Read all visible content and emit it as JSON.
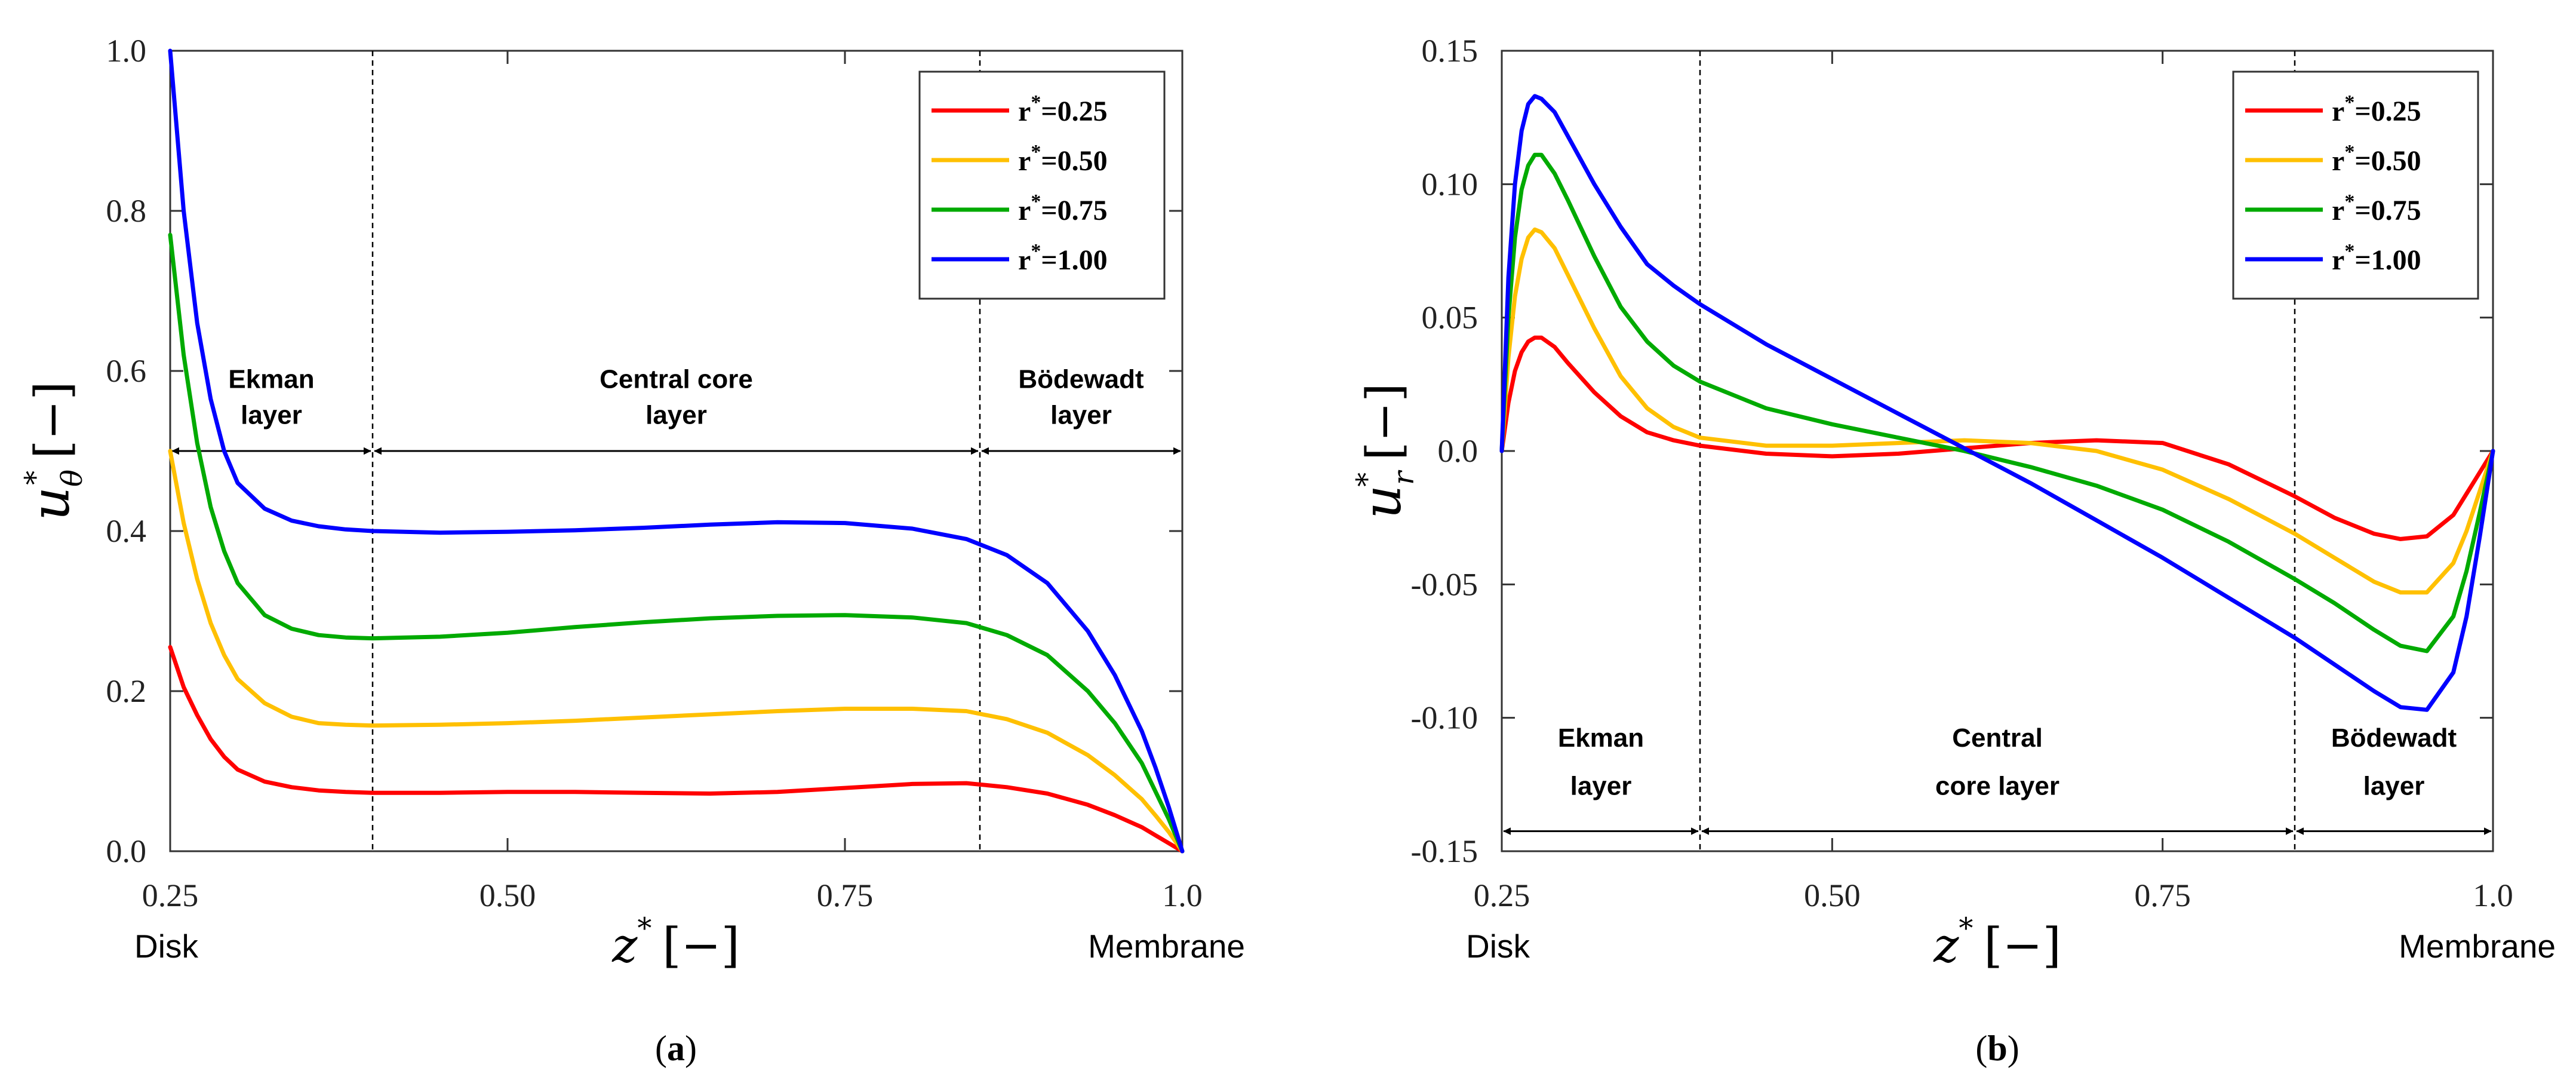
{
  "chart_data": [
    {
      "type": "line",
      "id": "a",
      "caption_letter": "a",
      "x_label": "z",
      "x_label_sup": "*",
      "y_label": "u",
      "y_label_sub": "θ",
      "y_label_sup": "*",
      "unit_bracket": "[−]",
      "xlim": [
        0.25,
        1.0
      ],
      "ylim": [
        0.0,
        1.0
      ],
      "x_ticks": [
        "0.25",
        "0.50",
        "0.75",
        "1.0"
      ],
      "x_tick_values": [
        0.25,
        0.5,
        0.75,
        1.0
      ],
      "y_ticks": [
        "0.0",
        "0.2",
        "0.4",
        "0.6",
        "0.8",
        "1.0"
      ],
      "y_tick_values": [
        0.0,
        0.2,
        0.4,
        0.6,
        0.8,
        1.0
      ],
      "x_left_label": "Disk",
      "x_right_label": "Membrane",
      "boundaries": [
        0.4,
        0.85
      ],
      "arrow_y": 0.5,
      "regions": [
        {
          "lines": [
            "Ekman",
            "layer"
          ],
          "x": 0.325,
          "y": [
            0.59,
            0.545
          ]
        },
        {
          "lines": [
            "Central core",
            "layer"
          ],
          "x": 0.625,
          "y": [
            0.59,
            0.545
          ]
        },
        {
          "lines": [
            "Bödewadt",
            "layer"
          ],
          "x": 0.925,
          "y": [
            0.59,
            0.545
          ]
        }
      ],
      "legend_title_prefix": "r",
      "series": [
        {
          "name": "r*=0.25",
          "label_value": "=0.25",
          "color": "#ff0000",
          "x": [
            0.25,
            0.26,
            0.27,
            0.28,
            0.29,
            0.3,
            0.32,
            0.34,
            0.36,
            0.38,
            0.4,
            0.45,
            0.5,
            0.55,
            0.6,
            0.65,
            0.7,
            0.75,
            0.8,
            0.84,
            0.87,
            0.9,
            0.93,
            0.95,
            0.97,
            0.98,
            0.99,
            1.0
          ],
          "y": [
            0.255,
            0.205,
            0.17,
            0.14,
            0.118,
            0.102,
            0.087,
            0.08,
            0.076,
            0.074,
            0.073,
            0.073,
            0.074,
            0.074,
            0.073,
            0.072,
            0.074,
            0.079,
            0.084,
            0.085,
            0.08,
            0.072,
            0.058,
            0.045,
            0.03,
            0.02,
            0.01,
            0.0
          ]
        },
        {
          "name": "r*=0.50",
          "label_value": "=0.50",
          "color": "#ffc000",
          "x": [
            0.25,
            0.26,
            0.27,
            0.28,
            0.29,
            0.3,
            0.32,
            0.34,
            0.36,
            0.38,
            0.4,
            0.45,
            0.5,
            0.55,
            0.6,
            0.65,
            0.7,
            0.75,
            0.8,
            0.84,
            0.87,
            0.9,
            0.93,
            0.95,
            0.97,
            0.98,
            0.99,
            1.0
          ],
          "y": [
            0.5,
            0.41,
            0.34,
            0.285,
            0.245,
            0.215,
            0.185,
            0.168,
            0.16,
            0.158,
            0.157,
            0.158,
            0.16,
            0.163,
            0.167,
            0.171,
            0.175,
            0.178,
            0.178,
            0.175,
            0.165,
            0.148,
            0.12,
            0.095,
            0.065,
            0.045,
            0.024,
            0.0
          ]
        },
        {
          "name": "r*=0.75",
          "label_value": "=0.75",
          "color": "#00aa00",
          "x": [
            0.25,
            0.26,
            0.27,
            0.28,
            0.29,
            0.3,
            0.32,
            0.34,
            0.36,
            0.38,
            0.4,
            0.45,
            0.5,
            0.55,
            0.6,
            0.65,
            0.7,
            0.75,
            0.8,
            0.84,
            0.87,
            0.9,
            0.93,
            0.95,
            0.97,
            0.98,
            0.99,
            1.0
          ],
          "y": [
            0.77,
            0.62,
            0.51,
            0.43,
            0.375,
            0.335,
            0.295,
            0.278,
            0.27,
            0.267,
            0.266,
            0.268,
            0.273,
            0.28,
            0.286,
            0.291,
            0.294,
            0.295,
            0.292,
            0.285,
            0.27,
            0.245,
            0.2,
            0.16,
            0.11,
            0.075,
            0.04,
            0.0
          ]
        },
        {
          "name": "r*=1.00",
          "label_value": "=1.00",
          "color": "#0000ff",
          "x": [
            0.25,
            0.26,
            0.27,
            0.28,
            0.29,
            0.3,
            0.32,
            0.34,
            0.36,
            0.38,
            0.4,
            0.45,
            0.5,
            0.55,
            0.6,
            0.65,
            0.7,
            0.75,
            0.8,
            0.84,
            0.87,
            0.9,
            0.93,
            0.95,
            0.97,
            0.98,
            0.99,
            1.0
          ],
          "y": [
            1.0,
            0.8,
            0.66,
            0.565,
            0.5,
            0.46,
            0.428,
            0.413,
            0.406,
            0.402,
            0.4,
            0.398,
            0.399,
            0.401,
            0.404,
            0.408,
            0.411,
            0.41,
            0.403,
            0.39,
            0.37,
            0.335,
            0.275,
            0.22,
            0.15,
            0.105,
            0.055,
            0.0
          ]
        }
      ]
    },
    {
      "type": "line",
      "id": "b",
      "caption_letter": "b",
      "x_label": "z",
      "x_label_sup": "*",
      "y_label": "u",
      "y_label_sub": "r",
      "y_label_sup": "*",
      "unit_bracket": "[−]",
      "xlim": [
        0.25,
        1.0
      ],
      "ylim": [
        -0.15,
        0.15
      ],
      "x_ticks": [
        "0.25",
        "0.50",
        "0.75",
        "1.0"
      ],
      "x_tick_values": [
        0.25,
        0.5,
        0.75,
        1.0
      ],
      "y_ticks": [
        "-0.15",
        "-0.10",
        "-0.05",
        "0.0",
        "0.05",
        "0.10",
        "0.15"
      ],
      "y_tick_values": [
        -0.15,
        -0.1,
        -0.05,
        0.0,
        0.05,
        0.1,
        0.15
      ],
      "x_left_label": "Disk",
      "x_right_label": "Membrane",
      "boundaries": [
        0.4,
        0.85
      ],
      "arrow_y": -0.1425,
      "regions": [
        {
          "lines": [
            "Ekman",
            "layer"
          ],
          "x": 0.325,
          "y": [
            -0.1075,
            -0.1255
          ]
        },
        {
          "lines": [
            "Central",
            "core layer"
          ],
          "x": 0.625,
          "y": [
            -0.1075,
            -0.1255
          ]
        },
        {
          "lines": [
            "Bödewadt",
            "layer"
          ],
          "x": 0.925,
          "y": [
            -0.1075,
            -0.1255
          ]
        }
      ],
      "legend_title_prefix": "r",
      "series": [
        {
          "name": "r*=0.25",
          "label_value": "=0.25",
          "color": "#ff0000",
          "x": [
            0.25,
            0.255,
            0.26,
            0.265,
            0.27,
            0.275,
            0.28,
            0.29,
            0.3,
            0.32,
            0.34,
            0.36,
            0.38,
            0.4,
            0.45,
            0.5,
            0.55,
            0.6,
            0.65,
            0.7,
            0.75,
            0.8,
            0.85,
            0.88,
            0.91,
            0.93,
            0.95,
            0.97,
            0.98,
            0.99,
            1.0
          ],
          "y": [
            0.0,
            0.018,
            0.03,
            0.037,
            0.041,
            0.0425,
            0.0425,
            0.039,
            0.033,
            0.022,
            0.013,
            0.007,
            0.004,
            0.002,
            -0.001,
            -0.002,
            -0.001,
            0.001,
            0.003,
            0.004,
            0.003,
            -0.005,
            -0.017,
            -0.025,
            -0.031,
            -0.033,
            -0.032,
            -0.024,
            -0.016,
            -0.008,
            0.0
          ]
        },
        {
          "name": "r*=0.50",
          "label_value": "=0.50",
          "color": "#ffc000",
          "x": [
            0.25,
            0.255,
            0.26,
            0.265,
            0.27,
            0.275,
            0.28,
            0.29,
            0.3,
            0.32,
            0.34,
            0.36,
            0.38,
            0.4,
            0.45,
            0.5,
            0.55,
            0.6,
            0.65,
            0.7,
            0.75,
            0.8,
            0.85,
            0.88,
            0.91,
            0.93,
            0.95,
            0.97,
            0.98,
            0.99,
            1.0
          ],
          "y": [
            0.0,
            0.035,
            0.058,
            0.072,
            0.08,
            0.083,
            0.082,
            0.076,
            0.066,
            0.046,
            0.028,
            0.016,
            0.009,
            0.005,
            0.002,
            0.002,
            0.003,
            0.004,
            0.003,
            0.0,
            -0.007,
            -0.018,
            -0.031,
            -0.04,
            -0.049,
            -0.053,
            -0.053,
            -0.042,
            -0.03,
            -0.015,
            0.0
          ]
        },
        {
          "name": "r*=0.75",
          "label_value": "=0.75",
          "color": "#00aa00",
          "x": [
            0.25,
            0.255,
            0.26,
            0.265,
            0.27,
            0.275,
            0.28,
            0.29,
            0.3,
            0.32,
            0.34,
            0.36,
            0.38,
            0.4,
            0.45,
            0.5,
            0.55,
            0.6,
            0.65,
            0.7,
            0.75,
            0.8,
            0.85,
            0.88,
            0.91,
            0.93,
            0.95,
            0.97,
            0.98,
            0.99,
            1.0
          ],
          "y": [
            0.0,
            0.05,
            0.08,
            0.098,
            0.107,
            0.111,
            0.111,
            0.104,
            0.094,
            0.073,
            0.054,
            0.041,
            0.032,
            0.026,
            0.016,
            0.01,
            0.005,
            0.0,
            -0.006,
            -0.013,
            -0.022,
            -0.034,
            -0.048,
            -0.057,
            -0.067,
            -0.073,
            -0.075,
            -0.062,
            -0.045,
            -0.023,
            0.0
          ]
        },
        {
          "name": "r*=1.00",
          "label_value": "=1.00",
          "color": "#0000ff",
          "x": [
            0.25,
            0.255,
            0.26,
            0.265,
            0.27,
            0.275,
            0.28,
            0.29,
            0.3,
            0.32,
            0.34,
            0.36,
            0.38,
            0.4,
            0.45,
            0.5,
            0.55,
            0.6,
            0.65,
            0.7,
            0.75,
            0.8,
            0.85,
            0.88,
            0.91,
            0.93,
            0.95,
            0.97,
            0.98,
            0.99,
            1.0
          ],
          "y": [
            0.0,
            0.065,
            0.1,
            0.12,
            0.13,
            0.133,
            0.132,
            0.127,
            0.118,
            0.1,
            0.084,
            0.07,
            0.062,
            0.055,
            0.04,
            0.027,
            0.014,
            0.001,
            -0.012,
            -0.026,
            -0.04,
            -0.055,
            -0.07,
            -0.08,
            -0.09,
            -0.096,
            -0.097,
            -0.083,
            -0.062,
            -0.032,
            0.0
          ]
        }
      ]
    }
  ]
}
